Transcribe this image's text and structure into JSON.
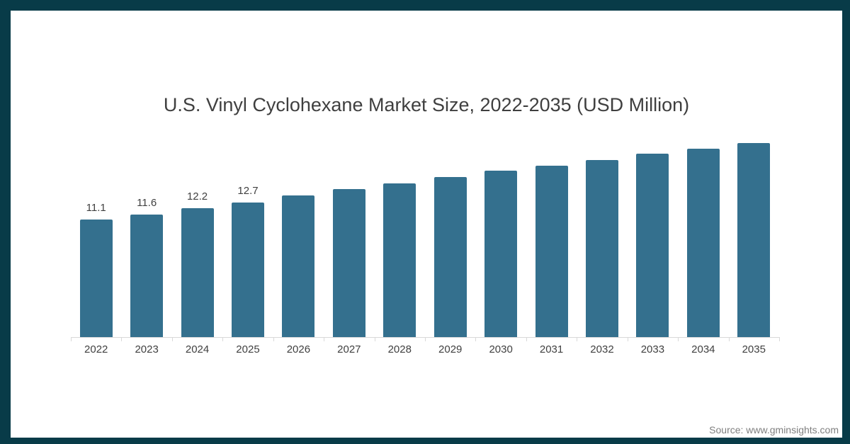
{
  "title": "U.S. Vinyl Cyclohexane Market Size, 2022-2035 (USD Million)",
  "footer": {
    "source": "Source: www.gminsights.com"
  },
  "colors": {
    "bar": "#34708E",
    "frame": "#083B48",
    "axis": "#D9D9D9",
    "title_text": "#3F3F3F",
    "label_text": "#404040",
    "source_text": "#7F7F7F"
  },
  "chart_data": {
    "type": "bar",
    "title": "U.S. Vinyl Cyclohexane Market Size, 2022-2035 (USD Million)",
    "categories": [
      "2022",
      "2023",
      "2024",
      "2025",
      "2026",
      "2027",
      "2028",
      "2029",
      "2030",
      "2031",
      "2032",
      "2033",
      "2034",
      "2035"
    ],
    "values": [
      11.1,
      11.6,
      12.2,
      12.7,
      13.4,
      14.0,
      14.5,
      15.1,
      15.7,
      16.2,
      16.7,
      17.3,
      17.8,
      18.3
    ],
    "data_labels": [
      "11.1",
      "11.6",
      "12.2",
      "12.7",
      "",
      "",
      "",
      "",
      "",
      "",
      "",
      "",
      "",
      ""
    ],
    "xlabel": "",
    "ylabel": "",
    "ylim": [
      0,
      19.8
    ],
    "grid": false,
    "legend": false,
    "y_axis_visible": false,
    "note": "only first four bars carry visible data labels; remaining values estimated from bar heights"
  }
}
